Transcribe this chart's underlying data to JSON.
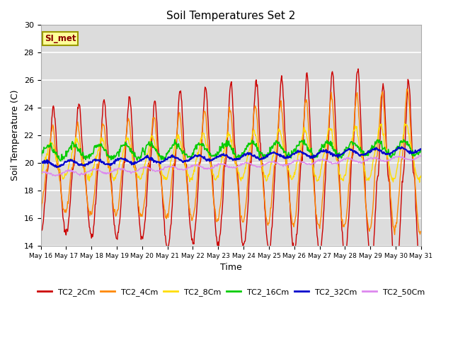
{
  "title": "Soil Temperatures Set 2",
  "xlabel": "Time",
  "ylabel": "Soil Temperature (C)",
  "ylim": [
    14,
    30
  ],
  "background_color": "#dcdcdc",
  "grid_color": "white",
  "annotation_text": "SI_met",
  "annotation_bg": "#ffff99",
  "annotation_border": "#999900",
  "x_tick_labels": [
    "May 16",
    "May 17",
    "May 18",
    "May 19",
    "May 20",
    "May 21",
    "May 22",
    "May 23",
    "May 24",
    "May 25",
    "May 26",
    "May 27",
    "May 28",
    "May 29",
    "May 30",
    "May 31"
  ],
  "series": {
    "TC2_2Cm": {
      "color": "#cc0000",
      "lw": 1.0
    },
    "TC2_4Cm": {
      "color": "#ff8800",
      "lw": 1.0
    },
    "TC2_8Cm": {
      "color": "#ffdd00",
      "lw": 1.0
    },
    "TC2_16Cm": {
      "color": "#00cc00",
      "lw": 1.2
    },
    "TC2_32Cm": {
      "color": "#0000cc",
      "lw": 1.5
    },
    "TC2_50Cm": {
      "color": "#dd88ee",
      "lw": 1.0
    }
  }
}
